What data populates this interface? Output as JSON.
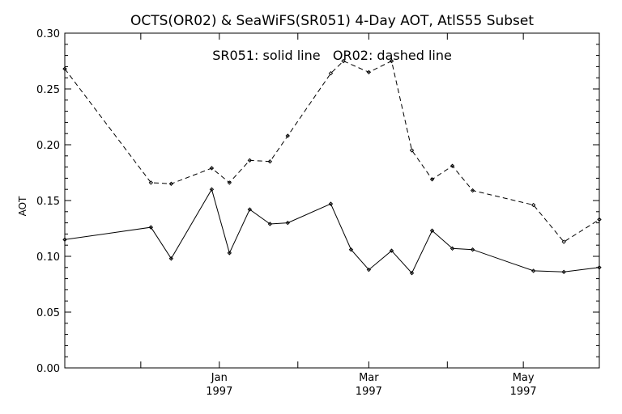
{
  "chart_data": {
    "type": "line",
    "title": "OCTS(OR02) & SeaWiFS(SR051) 4-Day AOT, AtlS55 Subset",
    "annotation": "SR051: solid line   OR02: dashed line",
    "ylabel": "AOT",
    "xlabel": "",
    "ylim": [
      0,
      0.3
    ],
    "yticks": [
      "0.00",
      "0.05",
      "0.10",
      "0.15",
      "0.20",
      "0.25",
      "0.30"
    ],
    "xlim": [
      "1996-11-01",
      "1997-05-31"
    ],
    "xticks_labeled": [
      {
        "month": "Jan",
        "year": "1997",
        "date": "1997-01-01"
      },
      {
        "month": "Mar",
        "year": "1997",
        "date": "1997-03-01"
      },
      {
        "month": "May",
        "year": "1997",
        "date": "1997-05-01"
      }
    ],
    "xticks_minor": [
      "1996-12-01",
      "1997-02-01",
      "1997-04-01"
    ],
    "grid": false,
    "legend_position": "top-center",
    "colors": {
      "line": "#000000",
      "background": "#ffffff"
    },
    "series": [
      {
        "name": "SR051",
        "style": "solid",
        "points": [
          {
            "x": "1996-11-01",
            "y": 0.115
          },
          {
            "x": "1996-12-05",
            "y": 0.126
          },
          {
            "x": "1996-12-13",
            "y": 0.098
          },
          {
            "x": "1996-12-29",
            "y": 0.16
          },
          {
            "x": "1997-01-05",
            "y": 0.103
          },
          {
            "x": "1997-01-13",
            "y": 0.142
          },
          {
            "x": "1997-01-21",
            "y": 0.129
          },
          {
            "x": "1997-01-28",
            "y": 0.13
          },
          {
            "x": "1997-02-14",
            "y": 0.147
          },
          {
            "x": "1997-02-22",
            "y": 0.106
          },
          {
            "x": "1997-03-01",
            "y": 0.088
          },
          {
            "x": "1997-03-10",
            "y": 0.105
          },
          {
            "x": "1997-03-18",
            "y": 0.085
          },
          {
            "x": "1997-03-26",
            "y": 0.123
          },
          {
            "x": "1997-04-03",
            "y": 0.107
          },
          {
            "x": "1997-04-11",
            "y": 0.106
          },
          {
            "x": "1997-05-05",
            "y": 0.087
          },
          {
            "x": "1997-05-17",
            "y": 0.086
          },
          {
            "x": "1997-05-31",
            "y": 0.09
          }
        ]
      },
      {
        "name": "OR02",
        "style": "dashed",
        "points": [
          {
            "x": "1996-11-01",
            "y": 0.268
          },
          {
            "x": "1996-12-05",
            "y": 0.166
          },
          {
            "x": "1996-12-13",
            "y": 0.165
          },
          {
            "x": "1996-12-29",
            "y": 0.179
          },
          {
            "x": "1997-01-05",
            "y": 0.166
          },
          {
            "x": "1997-01-13",
            "y": 0.186
          },
          {
            "x": "1997-01-21",
            "y": 0.185
          },
          {
            "x": "1997-01-28",
            "y": 0.208
          },
          {
            "x": "1997-02-14",
            "y": 0.264
          },
          {
            "x": "1997-02-19",
            "y": 0.275
          },
          {
            "x": "1997-03-01",
            "y": 0.265
          },
          {
            "x": "1997-03-10",
            "y": 0.275
          },
          {
            "x": "1997-03-18",
            "y": 0.195
          },
          {
            "x": "1997-03-26",
            "y": 0.169
          },
          {
            "x": "1997-04-03",
            "y": 0.181
          },
          {
            "x": "1997-04-11",
            "y": 0.159
          },
          {
            "x": "1997-05-05",
            "y": 0.146
          },
          {
            "x": "1997-05-17",
            "y": 0.113
          },
          {
            "x": "1997-05-31",
            "y": 0.133
          }
        ]
      }
    ]
  }
}
